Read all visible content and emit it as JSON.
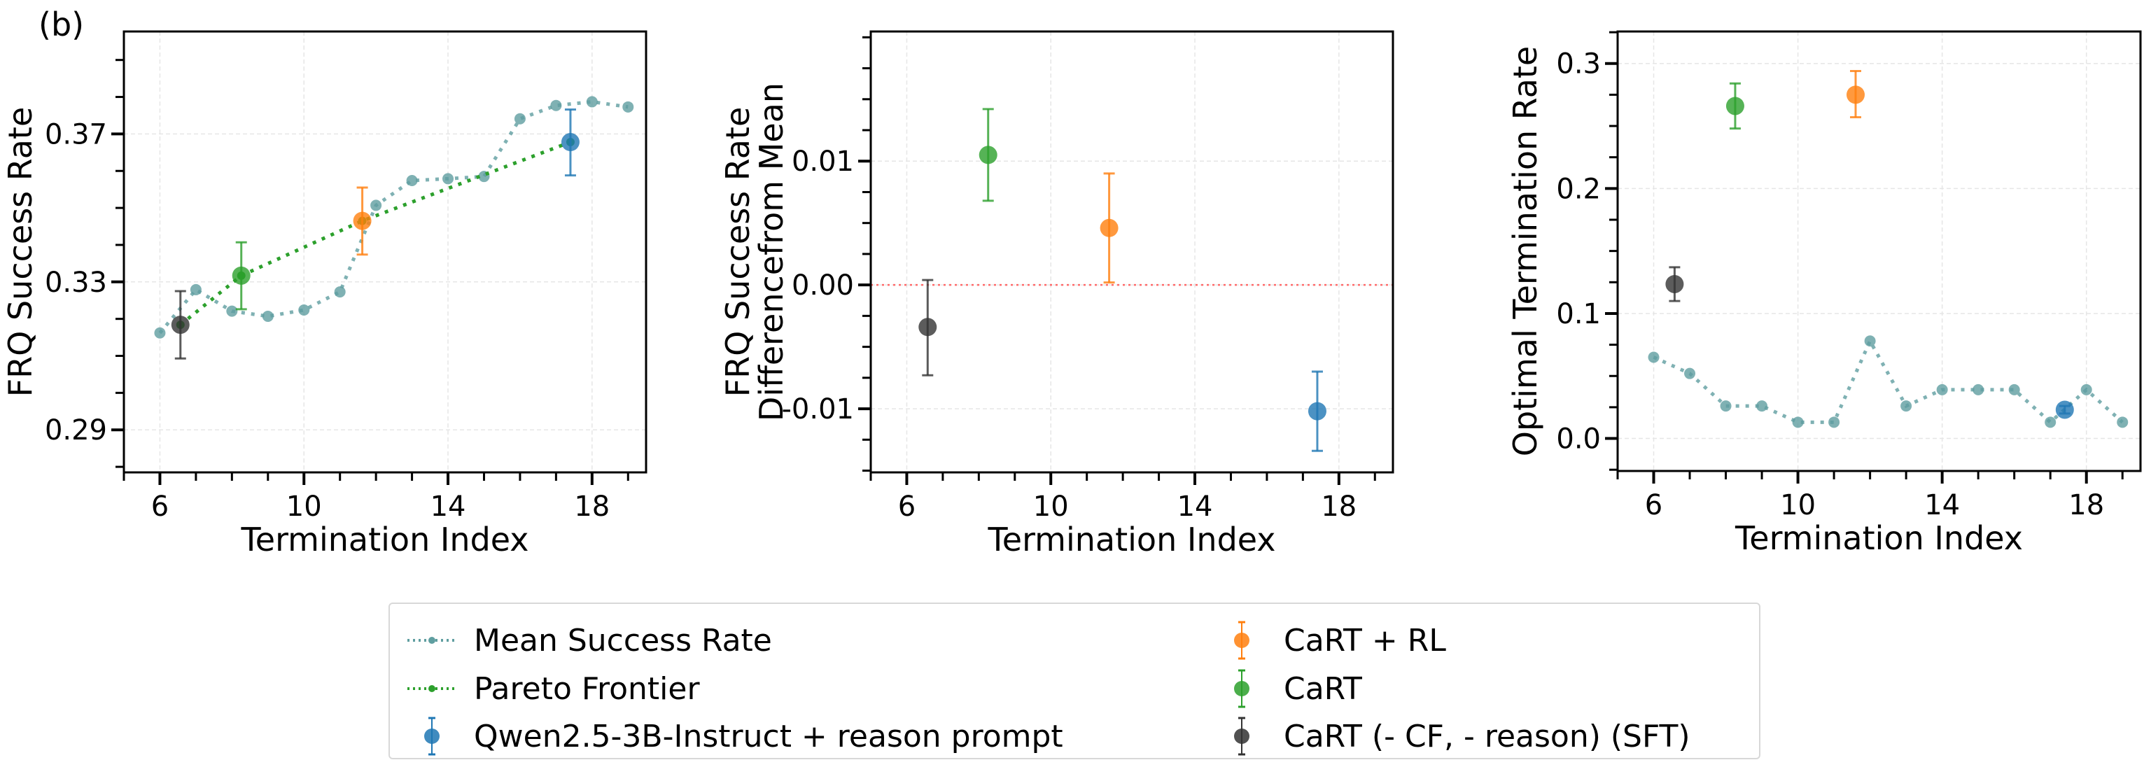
{
  "panel_tag": "(b)",
  "colors": {
    "mean": "#5f9ea0",
    "pareto": "#2ca02c",
    "qwen": "#1f77b4",
    "cart_rl": "#ff7f0e",
    "cart": "#2ca02c",
    "sft": "#333333",
    "zero_line": "#ff6b6b"
  },
  "legend": {
    "items": [
      {
        "key": "mean",
        "label": "Mean Success Rate",
        "kind": "line"
      },
      {
        "key": "pareto",
        "label": "Pareto Frontier",
        "kind": "line"
      },
      {
        "key": "qwen",
        "label": "Qwen2.5-3B-Instruct + reason prompt",
        "kind": "errorbar"
      },
      {
        "key": "cart_rl",
        "label": "CaRT + RL",
        "kind": "errorbar"
      },
      {
        "key": "cart",
        "label": "CaRT",
        "kind": "errorbar"
      },
      {
        "key": "sft",
        "label": "CaRT (- CF, - reason) (SFT)",
        "kind": "errorbar"
      }
    ]
  },
  "chart_data": [
    {
      "type": "scatter",
      "xlabel": "Termination Index",
      "ylabel": [
        "FRQ Success Rate"
      ],
      "xlim": [
        5,
        19.5
      ],
      "ylim": [
        0.2785,
        0.3977
      ],
      "xticks": [
        6,
        10,
        14,
        18
      ],
      "xticklabels": [
        "6",
        "10",
        "14",
        "18"
      ],
      "yticks": [
        0.29,
        0.33,
        0.37
      ],
      "yticklabels": [
        "0.29",
        "0.33",
        "0.37"
      ],
      "yminor_step": 0.01,
      "grid": true,
      "mean_series": {
        "x": [
          6,
          7,
          8,
          9,
          10,
          11,
          12,
          13,
          14,
          15,
          16,
          17,
          18,
          19
        ],
        "y": [
          0.3162,
          0.3279,
          0.3221,
          0.3207,
          0.3224,
          0.3273,
          0.3507,
          0.3574,
          0.3579,
          0.3585,
          0.3741,
          0.3777,
          0.3787,
          0.3773
        ]
      },
      "pareto": {
        "x": [
          6.57,
          8.26,
          11.62,
          17.4
        ],
        "y": [
          0.3184,
          0.3317,
          0.3465,
          0.3678
        ]
      },
      "points": [
        {
          "key": "sft",
          "x": 6.57,
          "y": 0.3184,
          "lo": 0.3093,
          "hi": 0.3275
        },
        {
          "key": "cart",
          "x": 8.26,
          "y": 0.3317,
          "lo": 0.3226,
          "hi": 0.3407
        },
        {
          "key": "cart_rl",
          "x": 11.62,
          "y": 0.3465,
          "lo": 0.3374,
          "hi": 0.3555
        },
        {
          "key": "qwen",
          "x": 17.4,
          "y": 0.3678,
          "lo": 0.3588,
          "hi": 0.3766
        }
      ]
    },
    {
      "type": "scatter",
      "xlabel": "Termination Index",
      "ylabel": [
        "FRQ Success Rate",
        "Differencefrom Mean"
      ],
      "xlim": [
        5,
        19.5
      ],
      "ylim": [
        -0.01514,
        0.02047
      ],
      "xticks": [
        6,
        10,
        14,
        18
      ],
      "xticklabels": [
        "6",
        "10",
        "14",
        "18"
      ],
      "yticks": [
        -0.01,
        0.0,
        0.01
      ],
      "yticklabels": [
        "-0.01",
        "0.00",
        "0.01"
      ],
      "yminor_step": 0.0025,
      "grid": true,
      "reference_line": 0.0,
      "points": [
        {
          "key": "sft",
          "x": 6.58,
          "y": -0.0034,
          "lo": -0.0073,
          "hi": 0.0004
        },
        {
          "key": "cart",
          "x": 8.26,
          "y": 0.0105,
          "lo": 0.0068,
          "hi": 0.0142
        },
        {
          "key": "cart_rl",
          "x": 11.62,
          "y": 0.0046,
          "lo": 0.0002,
          "hi": 0.009
        },
        {
          "key": "qwen",
          "x": 17.4,
          "y": -0.0102,
          "lo": -0.0134,
          "hi": -0.007
        }
      ]
    },
    {
      "type": "scatter",
      "xlabel": "Termination Index",
      "ylabel": [
        "Optimal Termination Rate"
      ],
      "xlim": [
        5,
        19.5
      ],
      "ylim": [
        -0.026,
        0.3256
      ],
      "xticks": [
        6,
        10,
        14,
        18
      ],
      "xticklabels": [
        "6",
        "10",
        "14",
        "18"
      ],
      "yticks": [
        0.0,
        0.1,
        0.2,
        0.3
      ],
      "yticklabels": [
        "0.0",
        "0.1",
        "0.2",
        "0.3"
      ],
      "yminor_step": 0.025,
      "grid": true,
      "mean_series": {
        "x": [
          6,
          7,
          8,
          9,
          10,
          11,
          12,
          13,
          14,
          15,
          16,
          17,
          18,
          19
        ],
        "y": [
          0.065,
          0.052,
          0.026,
          0.026,
          0.013,
          0.013,
          0.078,
          0.026,
          0.039,
          0.039,
          0.039,
          0.013,
          0.039,
          0.013
        ]
      },
      "points": [
        {
          "key": "sft",
          "x": 6.58,
          "y": 0.1235,
          "lo": 0.11,
          "hi": 0.137
        },
        {
          "key": "cart",
          "x": 8.26,
          "y": 0.266,
          "lo": 0.248,
          "hi": 0.284
        },
        {
          "key": "cart_rl",
          "x": 11.6,
          "y": 0.275,
          "lo": 0.257,
          "hi": 0.294
        },
        {
          "key": "qwen",
          "x": 17.4,
          "y": 0.023,
          "lo": 0.02,
          "hi": 0.026
        }
      ]
    }
  ]
}
